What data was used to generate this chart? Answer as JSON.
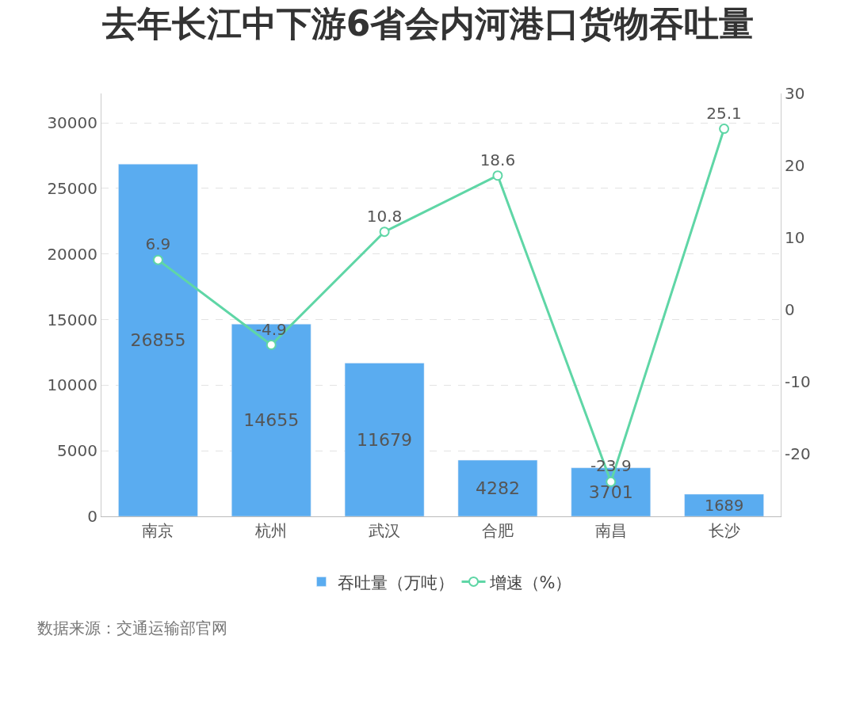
{
  "chart_data": {
    "type": "bar",
    "title": "去年长江中下游6省会内河港口货物吞吐量",
    "categories": [
      "南京",
      "杭州",
      "武汉",
      "合肥",
      "南昌",
      "长沙"
    ],
    "series": [
      {
        "name": "吞吐量（万吨）",
        "color": "#5aacf0",
        "values": [
          26855,
          14655,
          11679,
          4282,
          3701,
          1689
        ]
      },
      {
        "name": "增速（%）",
        "type": "line",
        "axis": "y2",
        "color": "#5fd6a6",
        "values": [
          6.9,
          -4.9,
          10.8,
          18.6,
          -23.9,
          25.1
        ]
      }
    ],
    "ylim": [
      0,
      32240
    ],
    "yticks": [
      0,
      5000,
      10000,
      15000,
      20000,
      25000,
      30000
    ],
    "y2lim": [
      -28.7,
      30
    ],
    "y2ticks": [
      -20,
      -10,
      0,
      10,
      20,
      30
    ],
    "grid": "y",
    "legend": "bottom",
    "marker": "circle",
    "line_style": "solid",
    "data_labels": true,
    "annotations": [
      "数据来源：交通运输部官网"
    ]
  }
}
